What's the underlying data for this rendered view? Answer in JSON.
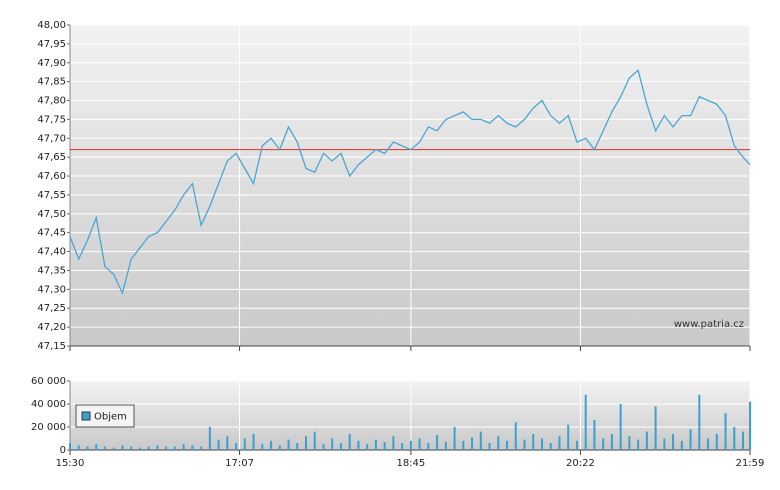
{
  "chart_data": [
    {
      "type": "line",
      "watermark": "www.patria.cz",
      "x": [
        "15:30",
        "15:35",
        "15:40",
        "15:45",
        "15:50",
        "15:55",
        "16:00",
        "16:05",
        "16:10",
        "16:15",
        "16:20",
        "16:25",
        "16:30",
        "16:35",
        "16:40",
        "16:45",
        "16:50",
        "16:55",
        "17:00",
        "17:05",
        "17:10",
        "17:15",
        "17:20",
        "17:25",
        "17:30",
        "17:35",
        "17:40",
        "17:45",
        "17:50",
        "17:55",
        "18:00",
        "18:05",
        "18:10",
        "18:15",
        "18:20",
        "18:25",
        "18:30",
        "18:35",
        "18:40",
        "18:45",
        "18:50",
        "18:55",
        "19:00",
        "19:05",
        "19:10",
        "19:15",
        "19:20",
        "19:25",
        "19:30",
        "19:35",
        "19:40",
        "19:45",
        "19:50",
        "19:55",
        "20:00",
        "20:05",
        "20:10",
        "20:15",
        "20:20",
        "20:25",
        "20:30",
        "20:35",
        "20:40",
        "20:45",
        "20:50",
        "20:55",
        "21:00",
        "21:05",
        "21:10",
        "21:15",
        "21:20",
        "21:25",
        "21:30",
        "21:35",
        "21:40",
        "21:45",
        "21:50",
        "21:55",
        "21:59"
      ],
      "series": [
        {
          "color": "#4ba6d6",
          "values": [
            47.44,
            47.38,
            47.43,
            47.49,
            47.36,
            47.34,
            47.29,
            47.38,
            47.41,
            47.44,
            47.45,
            47.48,
            47.51,
            47.55,
            47.58,
            47.47,
            47.52,
            47.58,
            47.64,
            47.66,
            47.62,
            47.58,
            47.68,
            47.7,
            47.67,
            47.73,
            47.69,
            47.62,
            47.61,
            47.66,
            47.64,
            47.66,
            47.6,
            47.63,
            47.65,
            47.67,
            47.66,
            47.69,
            47.68,
            47.67,
            47.69,
            47.73,
            47.72,
            47.75,
            47.76,
            47.77,
            47.75,
            47.75,
            47.74,
            47.76,
            47.74,
            47.73,
            47.75,
            47.78,
            47.8,
            47.76,
            47.74,
            47.76,
            47.69,
            47.7,
            47.67,
            47.72,
            47.77,
            47.81,
            47.86,
            47.88,
            47.79,
            47.72,
            47.76,
            47.73,
            47.76,
            47.76,
            47.81,
            47.8,
            47.79,
            47.76,
            47.68,
            47.65,
            47.63
          ]
        }
      ],
      "reference_line": 47.67,
      "reference_color": "#e03020",
      "xlim": [
        "15:30",
        "21:59"
      ],
      "xticks": [
        "15:30",
        "17:07",
        "18:45",
        "20:22",
        "21:59"
      ],
      "ylim": [
        47.15,
        48.0
      ],
      "yticks": [
        {
          "value": 47.15,
          "label": "47,15"
        },
        {
          "value": 47.2,
          "label": "47,20"
        },
        {
          "value": 47.25,
          "label": "47,25"
        },
        {
          "value": 47.3,
          "label": "47,30"
        },
        {
          "value": 47.35,
          "label": "47,35"
        },
        {
          "value": 47.4,
          "label": "47,40"
        },
        {
          "value": 47.45,
          "label": "47,45"
        },
        {
          "value": 47.5,
          "label": "47,50"
        },
        {
          "value": 47.55,
          "label": "47,55"
        },
        {
          "value": 47.6,
          "label": "47,60"
        },
        {
          "value": 47.65,
          "label": "47,65"
        },
        {
          "value": 47.7,
          "label": "47,70"
        },
        {
          "value": 47.75,
          "label": "47,75"
        },
        {
          "value": 47.8,
          "label": "47,80"
        },
        {
          "value": 47.85,
          "label": "47,85"
        },
        {
          "value": 47.9,
          "label": "47,90"
        },
        {
          "value": 47.95,
          "label": "47,95"
        },
        {
          "value": 48.0,
          "label": "48,00"
        }
      ],
      "grid": true
    },
    {
      "type": "bar",
      "x": [
        "15:30",
        "15:35",
        "15:40",
        "15:45",
        "15:50",
        "15:55",
        "16:00",
        "16:05",
        "16:10",
        "16:15",
        "16:20",
        "16:25",
        "16:30",
        "16:35",
        "16:40",
        "16:45",
        "16:50",
        "16:55",
        "17:00",
        "17:05",
        "17:10",
        "17:15",
        "17:20",
        "17:25",
        "17:30",
        "17:35",
        "17:40",
        "17:45",
        "17:50",
        "17:55",
        "18:00",
        "18:05",
        "18:10",
        "18:15",
        "18:20",
        "18:25",
        "18:30",
        "18:35",
        "18:40",
        "18:45",
        "18:50",
        "18:55",
        "19:00",
        "19:05",
        "19:10",
        "19:15",
        "19:20",
        "19:25",
        "19:30",
        "19:35",
        "19:40",
        "19:45",
        "19:50",
        "19:55",
        "20:00",
        "20:05",
        "20:10",
        "20:15",
        "20:20",
        "20:25",
        "20:30",
        "20:35",
        "20:40",
        "20:45",
        "20:50",
        "20:55",
        "21:00",
        "21:05",
        "21:10",
        "21:15",
        "21:20",
        "21:25",
        "21:30",
        "21:35",
        "21:40",
        "21:45",
        "21:50",
        "21:55",
        "21:59"
      ],
      "series": [
        {
          "name": "Objem",
          "color": "#3aa0cf",
          "values": [
            6000,
            4000,
            3000,
            5000,
            3000,
            2000,
            4000,
            3000,
            2000,
            3000,
            4000,
            3000,
            3000,
            5000,
            4000,
            3000,
            20000,
            9000,
            12000,
            6000,
            10000,
            14000,
            5000,
            8000,
            4000,
            9000,
            6000,
            12000,
            16000,
            5000,
            10000,
            6000,
            14000,
            8000,
            5000,
            9000,
            7000,
            12000,
            6000,
            8000,
            10000,
            6000,
            13000,
            7000,
            20000,
            8000,
            11000,
            16000,
            6000,
            12000,
            8000,
            24000,
            9000,
            14000,
            10000,
            6000,
            12000,
            22000,
            8000,
            48000,
            26000,
            10000,
            14000,
            40000,
            12000,
            9000,
            16000,
            38000,
            10000,
            14000,
            8000,
            18000,
            48000,
            10000,
            14000,
            32000,
            20000,
            16000,
            42000
          ]
        }
      ],
      "legend": "upper-left",
      "xlim": [
        "15:30",
        "21:59"
      ],
      "xticks": [
        "15:30",
        "17:07",
        "18:45",
        "20:22",
        "21:59"
      ],
      "ylim": [
        0,
        60000
      ],
      "yticks": [
        0,
        {
          "value": 20000,
          "label": "20 000"
        },
        {
          "value": 40000,
          "label": "40 000"
        },
        {
          "value": 60000,
          "label": "60 000"
        }
      ],
      "grid": true
    }
  ]
}
